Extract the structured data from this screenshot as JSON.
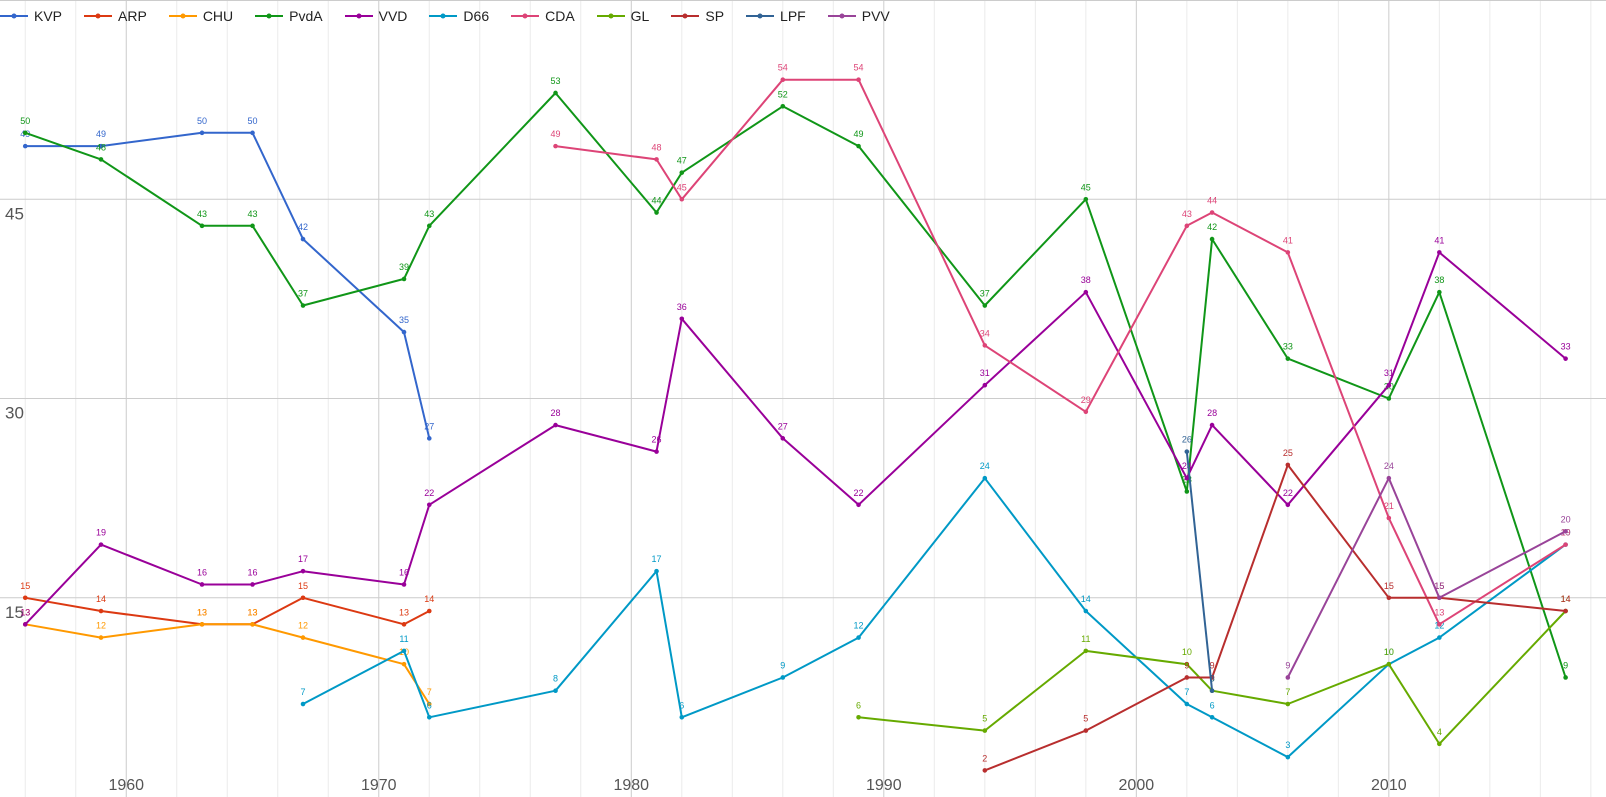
{
  "chart_data": {
    "type": "line",
    "xlim": [
      1955,
      2018.6
    ],
    "ylim": [
      0,
      60
    ],
    "grid": true,
    "legend_position": "top-left",
    "x_ticks": [
      1960,
      1970,
      1980,
      1990,
      2000,
      2010
    ],
    "x_ticks_labels": [
      "1960",
      "1970",
      "1980",
      "1990",
      "2000",
      "2010"
    ],
    "y_ticks": [
      15,
      30,
      45
    ],
    "y_ticks_labels": [
      "15",
      "30",
      "45"
    ],
    "series": [
      {
        "name": "KVP",
        "color": "#3366cc",
        "points": [
          [
            1956,
            49
          ],
          [
            1959,
            49
          ],
          [
            1963,
            50
          ],
          [
            1965,
            50
          ],
          [
            1967,
            42
          ],
          [
            1971,
            35
          ],
          [
            1972,
            27
          ]
        ]
      },
      {
        "name": "ARP",
        "color": "#dc3912",
        "points": [
          [
            1956,
            15
          ],
          [
            1959,
            14
          ],
          [
            1963,
            13
          ],
          [
            1965,
            13
          ],
          [
            1967,
            15
          ],
          [
            1971,
            13
          ],
          [
            1972,
            14
          ]
        ]
      },
      {
        "name": "CHU",
        "color": "#ff9900",
        "points": [
          [
            1956,
            13
          ],
          [
            1959,
            12
          ],
          [
            1963,
            13
          ],
          [
            1965,
            13
          ],
          [
            1967,
            12
          ],
          [
            1971,
            10
          ],
          [
            1972,
            7
          ]
        ]
      },
      {
        "name": "PvdA",
        "color": "#109618",
        "points": [
          [
            1956,
            50
          ],
          [
            1959,
            48
          ],
          [
            1963,
            43
          ],
          [
            1965,
            43
          ],
          [
            1967,
            37
          ],
          [
            1971,
            39
          ],
          [
            1972,
            43
          ],
          [
            1977,
            53
          ],
          [
            1981,
            44
          ],
          [
            1982,
            47
          ],
          [
            1986,
            52
          ],
          [
            1989,
            49
          ],
          [
            1994,
            37
          ],
          [
            1998,
            45
          ],
          [
            2002,
            23
          ],
          [
            2003,
            42
          ],
          [
            2006,
            33
          ],
          [
            2010,
            30
          ],
          [
            2012,
            38
          ],
          [
            2017,
            9
          ]
        ]
      },
      {
        "name": "VVD",
        "color": "#990099",
        "points": [
          [
            1956,
            13
          ],
          [
            1959,
            19
          ],
          [
            1963,
            16
          ],
          [
            1965,
            16
          ],
          [
            1967,
            17
          ],
          [
            1971,
            16
          ],
          [
            1972,
            22
          ],
          [
            1977,
            28
          ],
          [
            1981,
            26
          ],
          [
            1982,
            36
          ],
          [
            1986,
            27
          ],
          [
            1989,
            22
          ],
          [
            1994,
            31
          ],
          [
            1998,
            38
          ],
          [
            2002,
            24
          ],
          [
            2003,
            28
          ],
          [
            2006,
            22
          ],
          [
            2010,
            31
          ],
          [
            2012,
            41
          ],
          [
            2017,
            33
          ]
        ]
      },
      {
        "name": "D66",
        "color": "#0099c6",
        "points": [
          [
            1967,
            7
          ],
          [
            1971,
            11
          ],
          [
            1972,
            6
          ],
          [
            1977,
            8
          ],
          [
            1981,
            17
          ],
          [
            1982,
            6
          ],
          [
            1986,
            9
          ],
          [
            1989,
            12
          ],
          [
            1994,
            24
          ],
          [
            1998,
            14
          ],
          [
            2002,
            7
          ],
          [
            2003,
            6
          ],
          [
            2006,
            3
          ],
          [
            2010,
            10
          ],
          [
            2012,
            12
          ],
          [
            2017,
            19
          ]
        ]
      },
      {
        "name": "CDA",
        "color": "#dd4477",
        "points": [
          [
            1977,
            49
          ],
          [
            1981,
            48
          ],
          [
            1982,
            45
          ],
          [
            1986,
            54
          ],
          [
            1989,
            54
          ],
          [
            1994,
            34
          ],
          [
            1998,
            29
          ],
          [
            2002,
            43
          ],
          [
            2003,
            44
          ],
          [
            2006,
            41
          ],
          [
            2010,
            21
          ],
          [
            2012,
            13
          ],
          [
            2017,
            19
          ]
        ]
      },
      {
        "name": "GL",
        "color": "#66aa00",
        "points": [
          [
            1989,
            6
          ],
          [
            1994,
            5
          ],
          [
            1998,
            11
          ],
          [
            2002,
            10
          ],
          [
            2003,
            8
          ],
          [
            2006,
            7
          ],
          [
            2010,
            10
          ],
          [
            2012,
            4
          ],
          [
            2017,
            14
          ]
        ]
      },
      {
        "name": "SP",
        "color": "#b82e2e",
        "points": [
          [
            1994,
            2
          ],
          [
            1998,
            5
          ],
          [
            2002,
            9
          ],
          [
            2003,
            9
          ],
          [
            2006,
            25
          ],
          [
            2010,
            15
          ],
          [
            2012,
            15
          ],
          [
            2017,
            14
          ]
        ]
      },
      {
        "name": "LPF",
        "color": "#316395",
        "points": [
          [
            2002,
            26
          ],
          [
            2003,
            8
          ]
        ]
      },
      {
        "name": "PVV",
        "color": "#994499",
        "points": [
          [
            2006,
            9
          ],
          [
            2010,
            24
          ],
          [
            2012,
            15
          ],
          [
            2017,
            20
          ]
        ]
      }
    ]
  }
}
